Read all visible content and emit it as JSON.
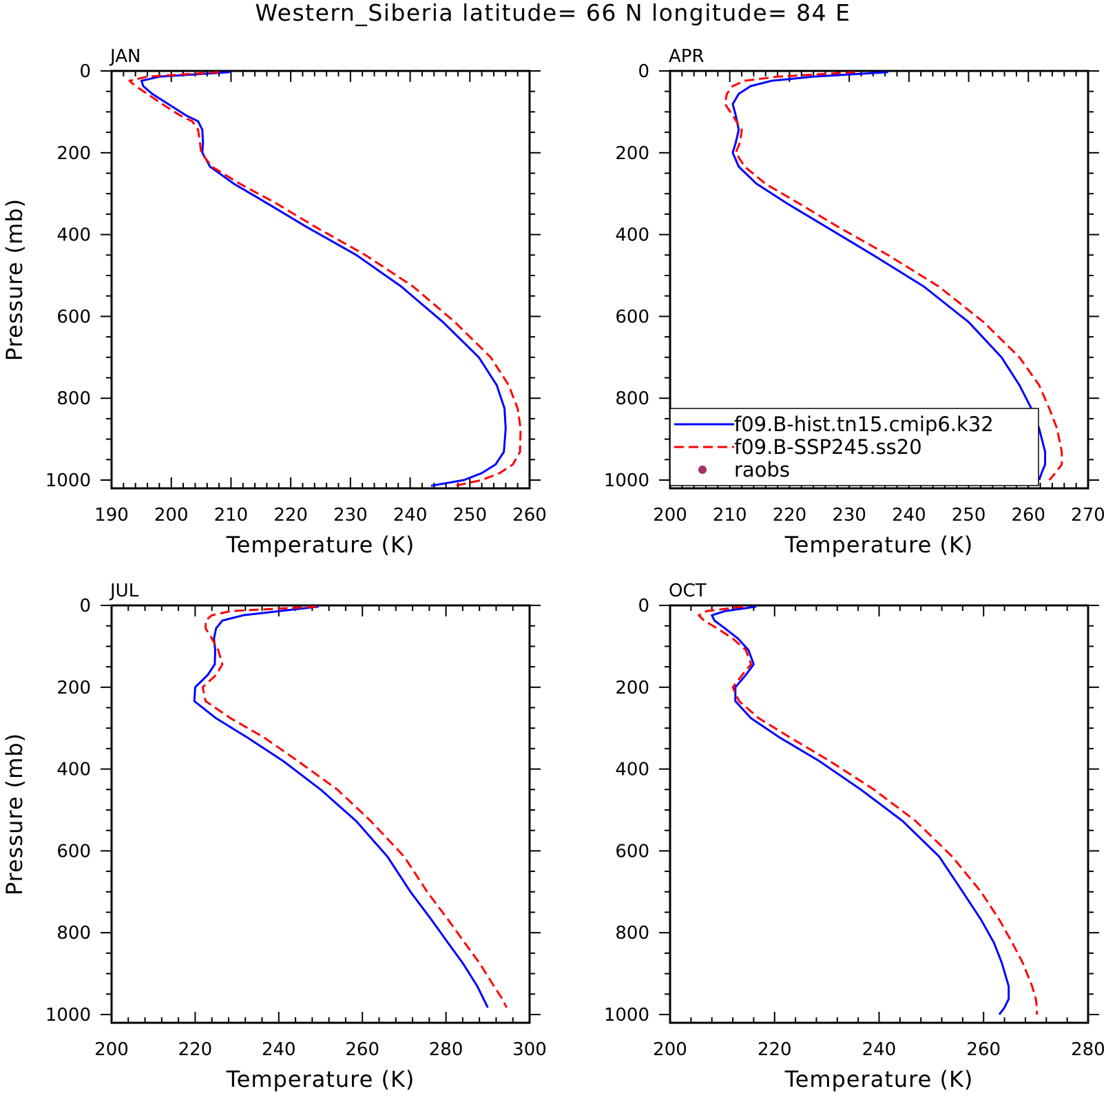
{
  "title": "Western_Siberia  latitude= 66 N longitude= 84 E",
  "legend": {
    "entries": [
      {
        "label": "f09.B-hist.tn15.cmip6.k32",
        "color": "#0000ff",
        "dash": "solid"
      },
      {
        "label": "f09.B-SSP245.ss20",
        "color": "#ff0000",
        "dash": "dashed"
      },
      {
        "label": "raobs",
        "color": "#a0306a",
        "dash": "marker"
      }
    ]
  },
  "chart_data": [
    {
      "type": "line",
      "panel": "JAN",
      "xlabel": "Temperature (K)",
      "ylabel": "Pressure (mb)",
      "xlim": [
        190,
        260
      ],
      "ylim": [
        1000,
        0
      ],
      "xticks": [
        190,
        200,
        210,
        220,
        230,
        240,
        250,
        260
      ],
      "yticks": [
        0,
        200,
        400,
        600,
        800,
        1000
      ],
      "series": [
        {
          "name": "f09.B-hist.tn15.cmip6.k32",
          "color": "#0000ff",
          "dash": "solid",
          "points": [
            [
              209.8,
              3
            ],
            [
              198,
              14
            ],
            [
              195,
              24
            ],
            [
              195.3,
              37
            ],
            [
              196.8,
              56
            ],
            [
              199.5,
              81
            ],
            [
              202.5,
              109
            ],
            [
              204.5,
              123
            ],
            [
              205.2,
              144
            ],
            [
              205.3,
              175
            ],
            [
              205.2,
              200
            ],
            [
              206.5,
              234
            ],
            [
              210.5,
              276
            ],
            [
              216,
              323
            ],
            [
              222.5,
              380
            ],
            [
              231,
              450
            ],
            [
              238.5,
              527
            ],
            [
              245.5,
              614
            ],
            [
              251.5,
              700
            ],
            [
              254.5,
              768
            ],
            [
              255.8,
              825
            ],
            [
              256,
              874
            ],
            [
              255.7,
              931
            ],
            [
              254.3,
              962
            ],
            [
              252,
              983
            ],
            [
              249,
              1000
            ],
            [
              243.5,
              1014
            ]
          ]
        },
        {
          "name": "f09.B-SSP245.ss20",
          "color": "#ff0000",
          "dash": "dashed",
          "points": [
            [
              208,
              3
            ],
            [
              196,
              14
            ],
            [
              193,
              24
            ],
            [
              194,
              37
            ],
            [
              196,
              56
            ],
            [
              198.5,
              81
            ],
            [
              201.5,
              109
            ],
            [
              203.5,
              123
            ],
            [
              204.5,
              144
            ],
            [
              204.8,
              175
            ],
            [
              205,
              200
            ],
            [
              206.8,
              234
            ],
            [
              211.5,
              276
            ],
            [
              217.5,
              323
            ],
            [
              224,
              380
            ],
            [
              232.5,
              450
            ],
            [
              240.5,
              527
            ],
            [
              247.5,
              614
            ],
            [
              253.5,
              700
            ],
            [
              256.5,
              768
            ],
            [
              258,
              825
            ],
            [
              258.5,
              874
            ],
            [
              258.4,
              931
            ],
            [
              257.2,
              962
            ],
            [
              255,
              983
            ],
            [
              252,
              1000
            ],
            [
              247.5,
              1014
            ]
          ]
        }
      ]
    },
    {
      "type": "line",
      "panel": "APR",
      "xlabel": "Temperature (K)",
      "ylabel": "",
      "xlim": [
        200,
        270
      ],
      "ylim": [
        1000,
        0
      ],
      "xticks": [
        200,
        210,
        220,
        230,
        240,
        250,
        260,
        270
      ],
      "yticks": [
        0,
        200,
        400,
        600,
        800,
        1000
      ],
      "series": [
        {
          "name": "f09.B-hist.tn15.cmip6.k32",
          "color": "#0000ff",
          "dash": "solid",
          "points": [
            [
              236.5,
              3
            ],
            [
              224,
              14
            ],
            [
              217,
              24
            ],
            [
              213.5,
              37
            ],
            [
              211.5,
              56
            ],
            [
              210.5,
              81
            ],
            [
              211,
              109
            ],
            [
              211.5,
              144
            ],
            [
              211,
              175
            ],
            [
              210.5,
              200
            ],
            [
              211.5,
              234
            ],
            [
              214.5,
              276
            ],
            [
              219.5,
              323
            ],
            [
              226,
              380
            ],
            [
              234,
              450
            ],
            [
              242.5,
              527
            ],
            [
              250,
              614
            ],
            [
              255.5,
              700
            ],
            [
              258.5,
              768
            ],
            [
              260.5,
              825
            ],
            [
              261.8,
              874
            ],
            [
              262.8,
              931
            ],
            [
              262.8,
              962
            ],
            [
              262.2,
              983
            ],
            [
              261.8,
              1000
            ]
          ]
        },
        {
          "name": "f09.B-SSP245.ss20",
          "color": "#ff0000",
          "dash": "dashed",
          "points": [
            [
              231,
              3
            ],
            [
              218,
              14
            ],
            [
              212.5,
              24
            ],
            [
              210.5,
              37
            ],
            [
              209.5,
              56
            ],
            [
              209.2,
              81
            ],
            [
              210.5,
              109
            ],
            [
              212,
              144
            ],
            [
              211.7,
              175
            ],
            [
              211,
              200
            ],
            [
              212.5,
              234
            ],
            [
              216,
              276
            ],
            [
              221.5,
              323
            ],
            [
              228,
              380
            ],
            [
              236.5,
              450
            ],
            [
              245,
              527
            ],
            [
              252.5,
              614
            ],
            [
              258.5,
              700
            ],
            [
              261.8,
              768
            ],
            [
              263.5,
              825
            ],
            [
              264.8,
              874
            ],
            [
              265.6,
              931
            ],
            [
              265.6,
              962
            ],
            [
              264.5,
              983
            ],
            [
              263.5,
              1000
            ]
          ]
        }
      ]
    },
    {
      "type": "line",
      "panel": "JUL",
      "xlabel": "Temperature (K)",
      "ylabel": "Pressure (mb)",
      "xlim": [
        200,
        300
      ],
      "ylim": [
        1000,
        0
      ],
      "xticks": [
        200,
        220,
        240,
        260,
        280,
        300
      ],
      "yticks": [
        0,
        200,
        400,
        600,
        800,
        1000
      ],
      "series": [
        {
          "name": "f09.B-hist.tn15.cmip6.k32",
          "color": "#0000ff",
          "dash": "solid",
          "points": [
            [
              249.5,
              3
            ],
            [
              231.5,
              24
            ],
            [
              226.5,
              37
            ],
            [
              225,
              56
            ],
            [
              224.5,
              81
            ],
            [
              224.8,
              109
            ],
            [
              224.7,
              144
            ],
            [
              223,
              170
            ],
            [
              220,
              200
            ],
            [
              219.8,
              234
            ],
            [
              225,
              276
            ],
            [
              232.5,
              323
            ],
            [
              241,
              380
            ],
            [
              250,
              450
            ],
            [
              258.5,
              527
            ],
            [
              266,
              614
            ],
            [
              271.5,
              700
            ],
            [
              276.5,
              768
            ],
            [
              280.5,
              825
            ],
            [
              284,
              874
            ],
            [
              287.5,
              931
            ],
            [
              289,
              962
            ],
            [
              290,
              983
            ]
          ]
        },
        {
          "name": "f09.B-SSP245.ss20",
          "color": "#ff0000",
          "dash": "dashed",
          "points": [
            [
              249,
              3
            ],
            [
              228.5,
              14
            ],
            [
              224,
              24
            ],
            [
              222.5,
              37
            ],
            [
              222.5,
              56
            ],
            [
              224,
              81
            ],
            [
              225.5,
              109
            ],
            [
              226.5,
              144
            ],
            [
              225,
              170
            ],
            [
              221.8,
              200
            ],
            [
              222.5,
              234
            ],
            [
              228.5,
              276
            ],
            [
              236.5,
              323
            ],
            [
              244.5,
              380
            ],
            [
              254,
              450
            ],
            [
              262,
              527
            ],
            [
              270,
              614
            ],
            [
              275.5,
              700
            ],
            [
              280.5,
              768
            ],
            [
              284.5,
              825
            ],
            [
              288,
              874
            ],
            [
              291.5,
              931
            ],
            [
              293.5,
              962
            ],
            [
              294.5,
              983
            ]
          ]
        }
      ]
    },
    {
      "type": "line",
      "panel": "OCT",
      "xlabel": "Temperature (K)",
      "ylabel": "",
      "xlim": [
        200,
        280
      ],
      "ylim": [
        1000,
        0
      ],
      "xticks": [
        200,
        220,
        240,
        260,
        280
      ],
      "yticks": [
        0,
        200,
        400,
        600,
        800,
        1000
      ],
      "series": [
        {
          "name": "f09.B-hist.tn15.cmip6.k32",
          "color": "#0000ff",
          "dash": "solid",
          "points": [
            [
              216.5,
              3
            ],
            [
              210.5,
              14
            ],
            [
              208,
              24
            ],
            [
              208.5,
              37
            ],
            [
              210.5,
              56
            ],
            [
              213,
              81
            ],
            [
              215,
              109
            ],
            [
              216,
              144
            ],
            [
              214.5,
              170
            ],
            [
              212.5,
              200
            ],
            [
              212.5,
              234
            ],
            [
              215.5,
              276
            ],
            [
              221,
              323
            ],
            [
              228.5,
              380
            ],
            [
              236.5,
              450
            ],
            [
              244.5,
              527
            ],
            [
              251.5,
              614
            ],
            [
              256,
              700
            ],
            [
              259.5,
              768
            ],
            [
              262,
              825
            ],
            [
              263.5,
              874
            ],
            [
              264.8,
              931
            ],
            [
              264.8,
              962
            ],
            [
              264,
              983
            ],
            [
              263,
              1000
            ]
          ]
        },
        {
          "name": "f09.B-SSP245.ss20",
          "color": "#ff0000",
          "dash": "dashed",
          "points": [
            [
              214,
              3
            ],
            [
              207,
              14
            ],
            [
              205.5,
              24
            ],
            [
              206.5,
              37
            ],
            [
              209,
              56
            ],
            [
              212,
              81
            ],
            [
              214.5,
              109
            ],
            [
              215.5,
              144
            ],
            [
              213.8,
              170
            ],
            [
              212,
              200
            ],
            [
              213.2,
              234
            ],
            [
              217,
              276
            ],
            [
              223,
              323
            ],
            [
              230.5,
              380
            ],
            [
              239,
              450
            ],
            [
              247,
              527
            ],
            [
              254,
              614
            ],
            [
              259.5,
              700
            ],
            [
              263,
              768
            ],
            [
              265.5,
              825
            ],
            [
              267.5,
              874
            ],
            [
              269.3,
              931
            ],
            [
              270,
              962
            ],
            [
              270.2,
              983
            ],
            [
              270.2,
              1000
            ]
          ]
        }
      ]
    }
  ]
}
